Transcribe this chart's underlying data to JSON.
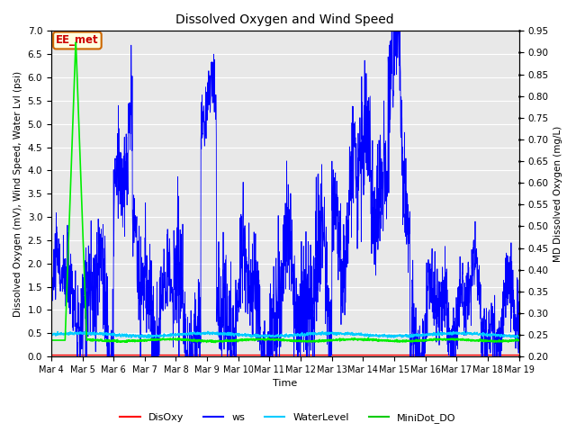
{
  "title": "Dissolved Oxygen and Wind Speed",
  "ylabel_left": "Dissolved Oxygen (mV), Wind Speed, Water Lvl (psi)",
  "ylabel_right": "MD Dissolved Oxygen (mg/L)",
  "xlabel": "Time",
  "annotation": "EE_met",
  "ylim_left": [
    0.0,
    7.0
  ],
  "ylim_right": [
    0.2,
    0.95
  ],
  "x_tick_labels": [
    "Mar 4",
    "Mar 5",
    "Mar 6",
    "Mar 7",
    "Mar 8",
    "Mar 9",
    "Mar 10",
    "Mar 11",
    "Mar 12",
    "Mar 13",
    "Mar 14",
    "Mar 15",
    "Mar 16",
    "Mar 17",
    "Mar 18",
    "Mar 19"
  ],
  "legend_entries": [
    "DisOxy",
    "ws",
    "WaterLevel",
    "MiniDot_DO"
  ],
  "legend_colors": [
    "#ff0000",
    "#0000ff",
    "#00ccff",
    "#00cc00"
  ],
  "bg_color": "#e8e8e8",
  "grid_color": "#ffffff",
  "ws_color": "#0000ff",
  "disoxy_color": "#ff0000",
  "waterlevel_color": "#00ccff",
  "minidot_color": "#00ee00",
  "yticks_left": [
    0.0,
    0.5,
    1.0,
    1.5,
    2.0,
    2.5,
    3.0,
    3.5,
    4.0,
    4.5,
    5.0,
    5.5,
    6.0,
    6.5,
    7.0
  ],
  "yticks_right": [
    0.2,
    0.25,
    0.3,
    0.35,
    0.4,
    0.45,
    0.5,
    0.55,
    0.6,
    0.65,
    0.7,
    0.75,
    0.8,
    0.85,
    0.9,
    0.95
  ]
}
